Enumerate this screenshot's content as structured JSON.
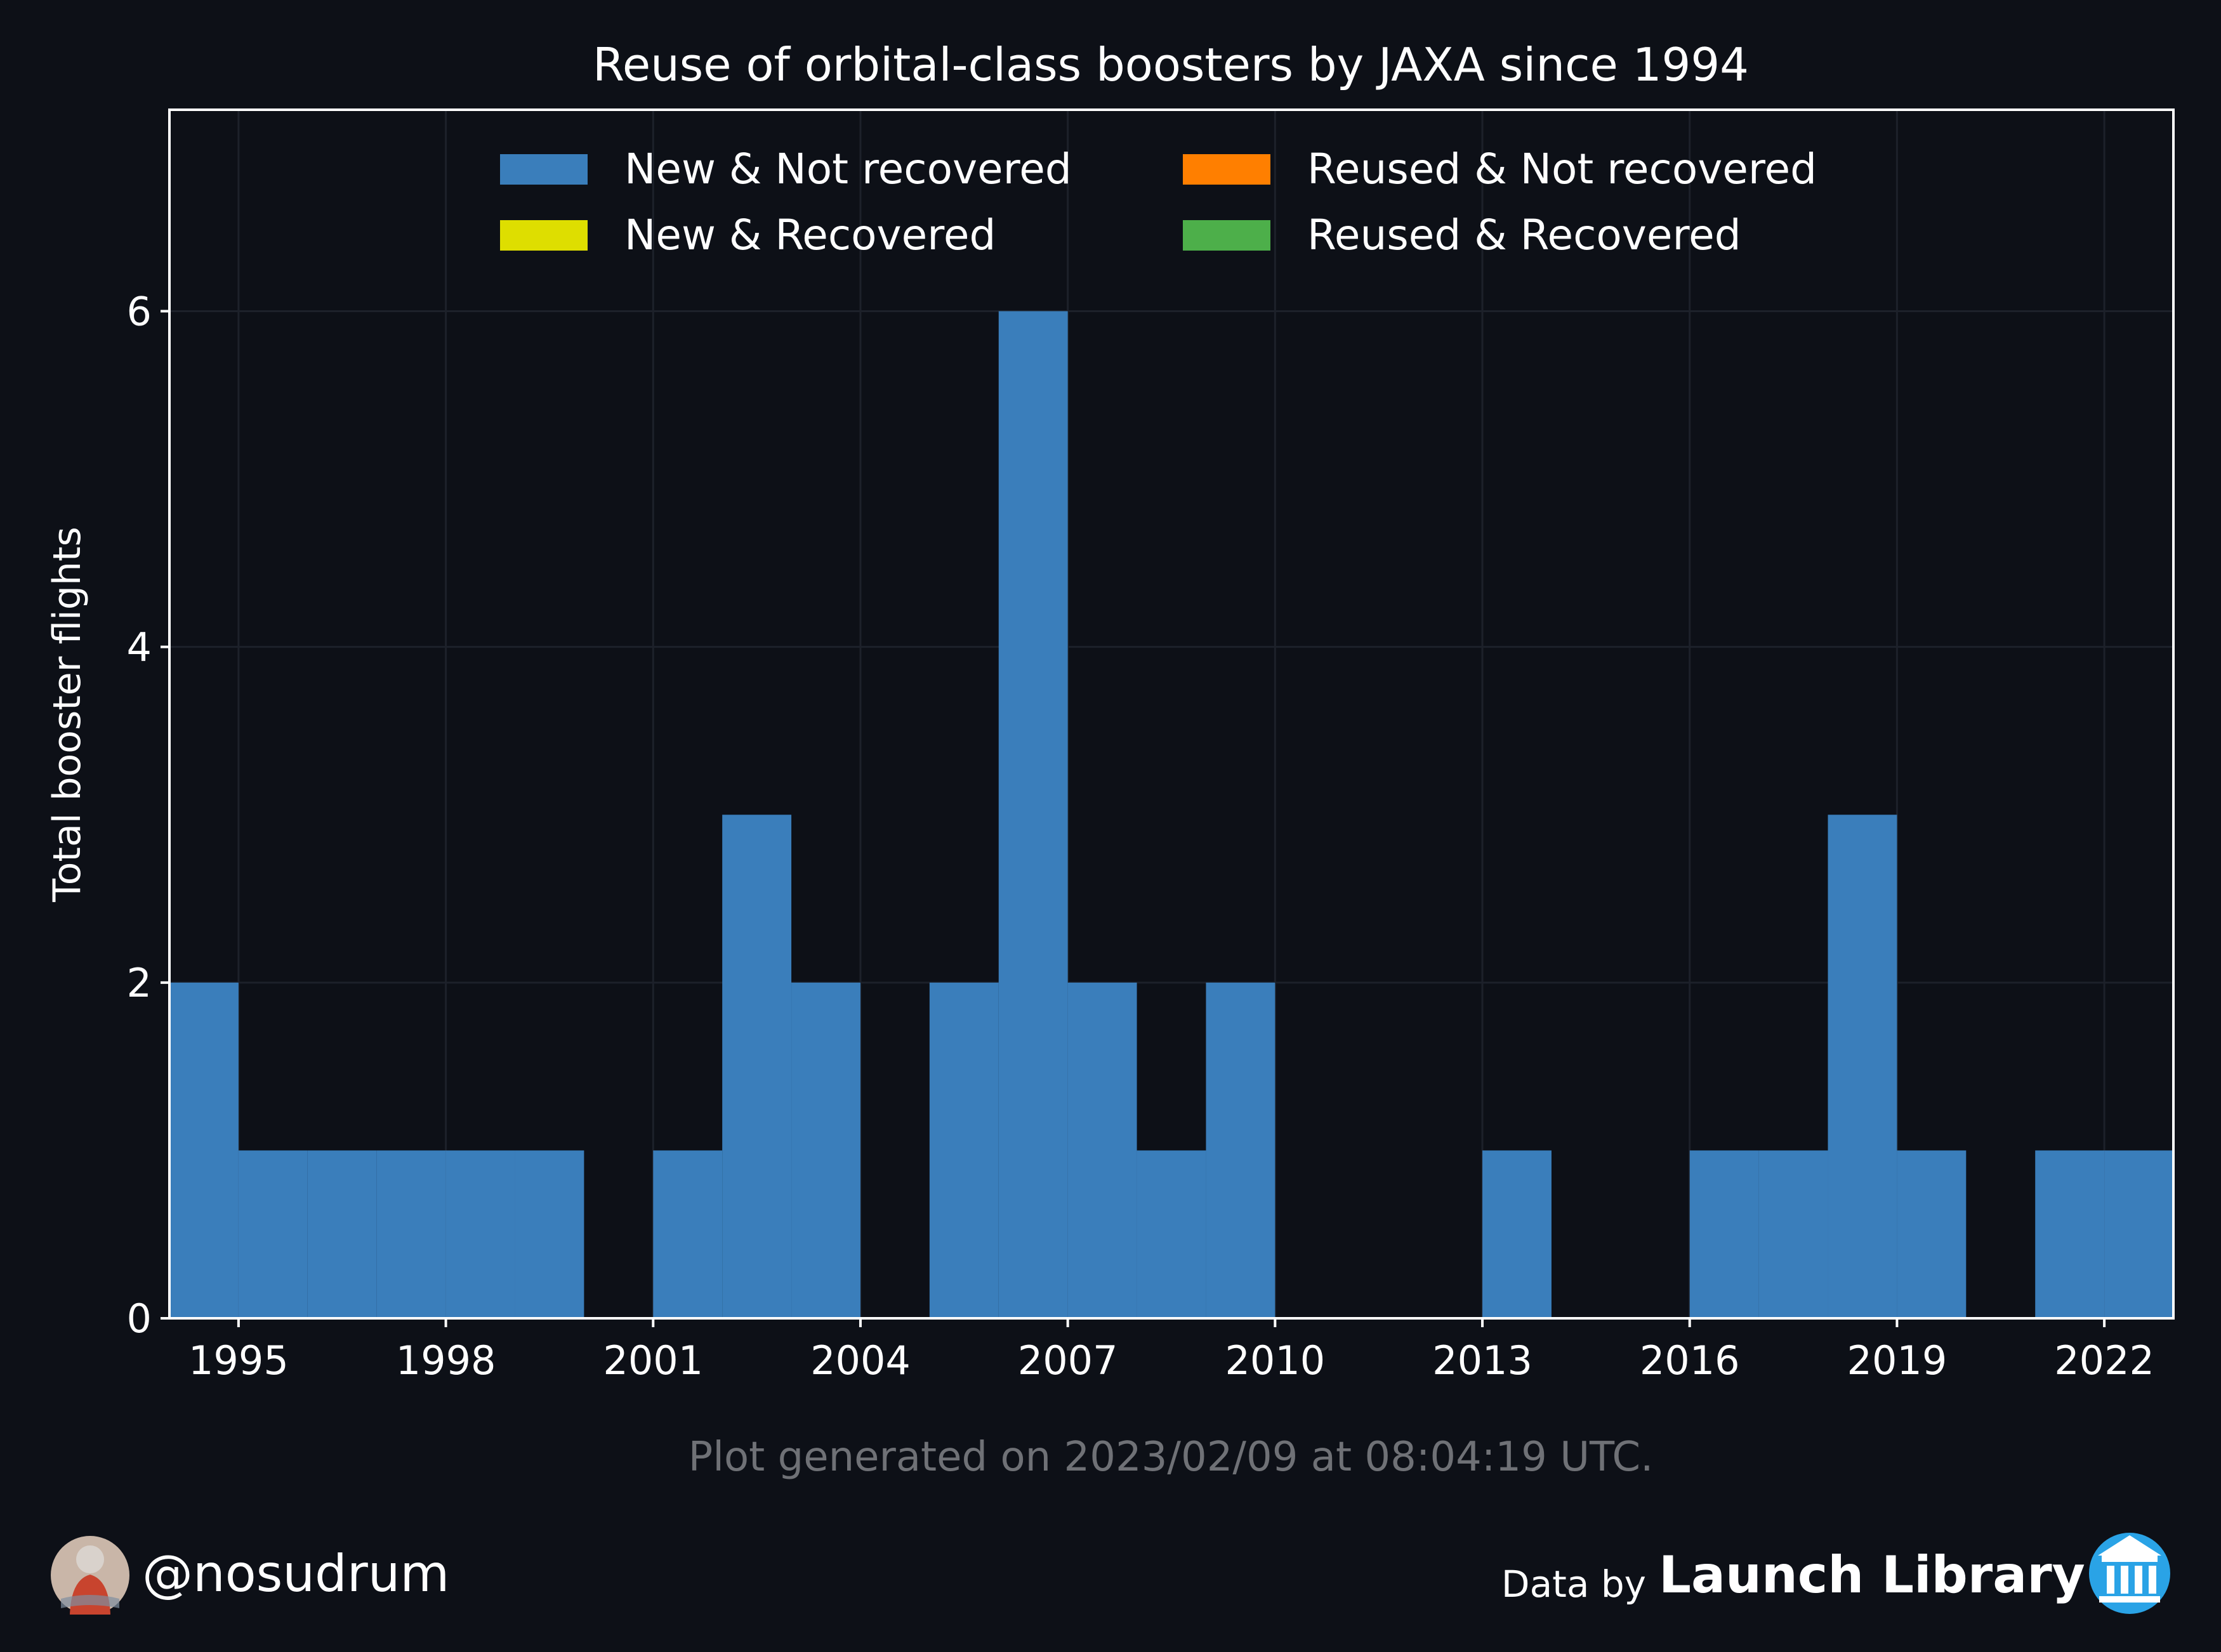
{
  "chart_data": {
    "type": "bar",
    "stacked": true,
    "title": "Reuse of orbital-class boosters by JAXA since 1994",
    "xlabel": "",
    "ylabel": "Total booster flights",
    "x": [
      1994,
      1995,
      1996,
      1997,
      1998,
      1999,
      2000,
      2001,
      2002,
      2003,
      2004,
      2005,
      2006,
      2007,
      2008,
      2009,
      2010,
      2011,
      2012,
      2013,
      2014,
      2015,
      2016,
      2017,
      2018,
      2019,
      2020,
      2021,
      2022
    ],
    "series": [
      {
        "name": "New & Not recovered",
        "color": "#3a7ebb",
        "values": [
          2,
          1,
          1,
          1,
          1,
          1,
          0,
          1,
          3,
          2,
          0,
          2,
          6,
          2,
          1,
          2,
          0,
          0,
          0,
          1,
          0,
          0,
          1,
          1,
          3,
          1,
          0,
          1,
          1
        ]
      },
      {
        "name": "New & Recovered",
        "color": "#dede00",
        "values": [
          0,
          0,
          0,
          0,
          0,
          0,
          0,
          0,
          0,
          0,
          0,
          0,
          0,
          0,
          0,
          0,
          0,
          0,
          0,
          0,
          0,
          0,
          0,
          0,
          0,
          0,
          0,
          0,
          0
        ]
      },
      {
        "name": "Reused & Not recovered",
        "color": "#ff7f00",
        "values": [
          0,
          0,
          0,
          0,
          0,
          0,
          0,
          0,
          0,
          0,
          0,
          0,
          0,
          0,
          0,
          0,
          0,
          0,
          0,
          0,
          0,
          0,
          0,
          0,
          0,
          0,
          0,
          0,
          0
        ]
      },
      {
        "name": "Reused & Recovered",
        "color": "#4daf4a",
        "values": [
          0,
          0,
          0,
          0,
          0,
          0,
          0,
          0,
          0,
          0,
          0,
          0,
          0,
          0,
          0,
          0,
          0,
          0,
          0,
          0,
          0,
          0,
          0,
          0,
          0,
          0,
          0,
          0,
          0
        ]
      }
    ],
    "xlim": [
      1994,
      2023
    ],
    "ylim": [
      0,
      7.2
    ],
    "xticks": [
      1995,
      1998,
      2001,
      2004,
      2007,
      2010,
      2013,
      2016,
      2019,
      2022
    ],
    "yticks": [
      0,
      2,
      4,
      6
    ],
    "grid": true,
    "legend_position": "top"
  },
  "footer": {
    "generated": "Plot generated on 2023/02/09 at 08:04:19 UTC.",
    "handle": "@nosudrum",
    "data_by": "Data by",
    "source": "Launch Library 2"
  },
  "icons": {
    "avatar": "astronaut-avatar",
    "source_logo": "launch-library-logo"
  }
}
